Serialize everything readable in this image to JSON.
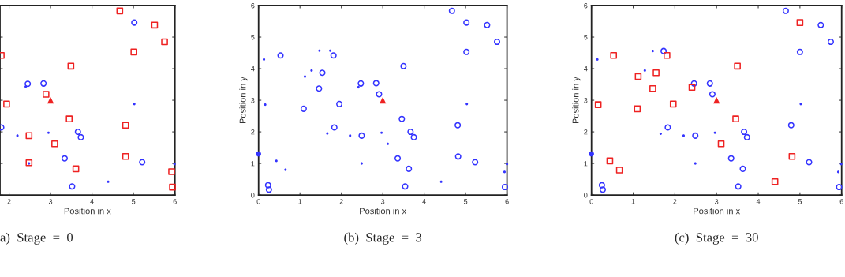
{
  "chart_data": [
    {
      "type": "scatter",
      "title": "a)  Stage  =  0",
      "xlabel": "Position in x",
      "xlim": [
        1.78,
        6
      ],
      "xticks": [
        2,
        3,
        4,
        5,
        6
      ],
      "ylim": [
        0,
        6
      ],
      "yticks": [
        0,
        1,
        2,
        3,
        4,
        5,
        6
      ],
      "tick_labels": "x",
      "grid": false,
      "legend": false,
      "series": [
        {
          "color": "#3333ff",
          "marker": "circle",
          "x": [
            5.02,
            2.45,
            2.83,
            1.81,
            3.66,
            3.73,
            3.34,
            3.52,
            5.21
          ],
          "values": [
            5.46,
            3.52,
            3.53,
            2.14,
            2.0,
            1.83,
            1.16,
            0.27,
            1.04
          ]
        },
        {
          "color": "#3333ff",
          "marker": "dot",
          "x": [
            2.4,
            2.2,
            2.95,
            2.48,
            4.39,
            5.02,
            5.99
          ],
          "values": [
            3.43,
            1.88,
            1.97,
            1.0,
            0.42,
            2.88,
            0.98
          ]
        },
        {
          "color": "#ee2222",
          "marker": "square",
          "x": [
            4.67,
            5.51,
            5.75,
            5.01,
            1.81,
            3.49,
            2.89,
            1.94,
            3.45,
            4.81,
            2.48,
            3.1,
            2.48,
            3.61,
            4.81,
            5.92,
            5.94
          ],
          "values": [
            5.83,
            5.38,
            4.85,
            4.53,
            4.42,
            4.08,
            3.19,
            2.88,
            2.41,
            2.21,
            1.88,
            1.62,
            1.02,
            0.83,
            1.22,
            0.74,
            0.25
          ]
        },
        {
          "color": "#ee2222",
          "marker": "triangle",
          "x": [
            3
          ],
          "values": [
            3
          ]
        }
      ]
    },
    {
      "type": "scatter",
      "title": "(b)  Stage  =  3",
      "xlabel": "Position in x",
      "ylabel": "Position in y",
      "xlim": [
        0,
        6
      ],
      "xticks": [
        0,
        1,
        2,
        3,
        4,
        5,
        6
      ],
      "ylim": [
        0,
        6
      ],
      "yticks": [
        0,
        1,
        2,
        3,
        4,
        5,
        6
      ],
      "grid": false,
      "legend": false,
      "series": [
        {
          "color": "#3333ff",
          "marker": "circle",
          "x": [
            0.53,
            1.81,
            1.54,
            1.46,
            1.09,
            1.95,
            1.83,
            2.47,
            2.84,
            2.91,
            3.5,
            3.46,
            3.67,
            3.75,
            2.49,
            3.36,
            3.63,
            3.54,
            0.23,
            0.25,
            4.67,
            5.02,
            5.52,
            5.76,
            5.02,
            4.81,
            4.82,
            5.23,
            5.95
          ],
          "values": [
            4.42,
            4.42,
            3.87,
            3.37,
            2.73,
            2.88,
            2.14,
            3.53,
            3.54,
            3.19,
            4.08,
            2.41,
            2.0,
            1.83,
            1.88,
            1.16,
            0.83,
            0.27,
            0.31,
            0.17,
            5.83,
            5.46,
            5.38,
            4.85,
            4.53,
            2.21,
            1.22,
            1.04,
            0.25
          ]
        },
        {
          "color": "#3333ff",
          "x": [
            0
          ],
          "values": [
            1.3
          ]
        },
        {
          "color": "#3333ff",
          "marker": "dot",
          "x": [
            0.13,
            0.16,
            0.43,
            0.65,
            1.12,
            1.28,
            1.47,
            1.73,
            1.66,
            2.21,
            2.41,
            2.49,
            2.97,
            3.12,
            4.41,
            5.03,
            5.94,
            6.0
          ],
          "values": [
            4.29,
            2.86,
            1.08,
            0.8,
            3.75,
            3.94,
            4.57,
            4.57,
            1.95,
            1.88,
            3.41,
            1.0,
            1.97,
            1.62,
            0.42,
            2.88,
            0.73,
            0.98
          ]
        },
        {
          "color": "#ee2222",
          "marker": "triangle",
          "x": [
            3
          ],
          "values": [
            3
          ]
        }
      ]
    },
    {
      "type": "scatter",
      "title": "(c)  Stage  =  30",
      "xlabel": "Position in x",
      "ylabel": "Position in y",
      "xlim": [
        0,
        6
      ],
      "xticks": [
        0,
        1,
        2,
        3,
        4,
        5,
        6
      ],
      "ylim": [
        0,
        6
      ],
      "yticks": [
        0,
        1,
        2,
        3,
        4,
        5,
        6
      ],
      "grid": false,
      "legend": false,
      "series": [
        {
          "color": "#3333ff",
          "marker": "circle",
          "x": [
            4.66,
            5.0,
            5.5,
            5.74,
            1.73,
            1.83,
            2.46,
            2.84,
            2.9,
            2.49,
            3.66,
            3.73,
            3.35,
            3.63,
            3.52,
            4.79,
            5.22,
            5.94,
            0.25,
            0.27
          ],
          "values": [
            5.83,
            4.53,
            5.38,
            4.85,
            4.56,
            2.14,
            3.53,
            3.53,
            3.19,
            1.88,
            2.0,
            1.83,
            1.16,
            0.83,
            0.27,
            2.21,
            1.04,
            0.25,
            0.31,
            0.17
          ]
        },
        {
          "color": "#3333ff",
          "x": [
            0
          ],
          "values": [
            1.3
          ]
        },
        {
          "color": "#3333ff",
          "marker": "dot",
          "x": [
            0.14,
            1.28,
            1.47,
            1.66,
            2.21,
            2.49,
            2.96,
            5.02,
            5.92,
            5.99
          ],
          "values": [
            4.29,
            3.94,
            4.56,
            1.94,
            1.88,
            1.0,
            1.97,
            2.88,
            0.73,
            0.98
          ]
        },
        {
          "color": "#ee2222",
          "marker": "square",
          "x": [
            0.53,
            0.16,
            0.44,
            0.67,
            1.12,
            1.55,
            1.47,
            1.1,
            1.81,
            1.96,
            2.41,
            3.5,
            3.46,
            3.11,
            4.81,
            4.4,
            5.0
          ],
          "values": [
            4.42,
            2.86,
            1.08,
            0.79,
            3.75,
            3.87,
            3.37,
            2.73,
            4.42,
            2.88,
            3.41,
            4.08,
            2.41,
            1.62,
            1.22,
            0.42,
            5.46
          ]
        },
        {
          "color": "#ee2222",
          "marker": "triangle",
          "x": [
            3
          ],
          "values": [
            3
          ]
        }
      ]
    }
  ]
}
